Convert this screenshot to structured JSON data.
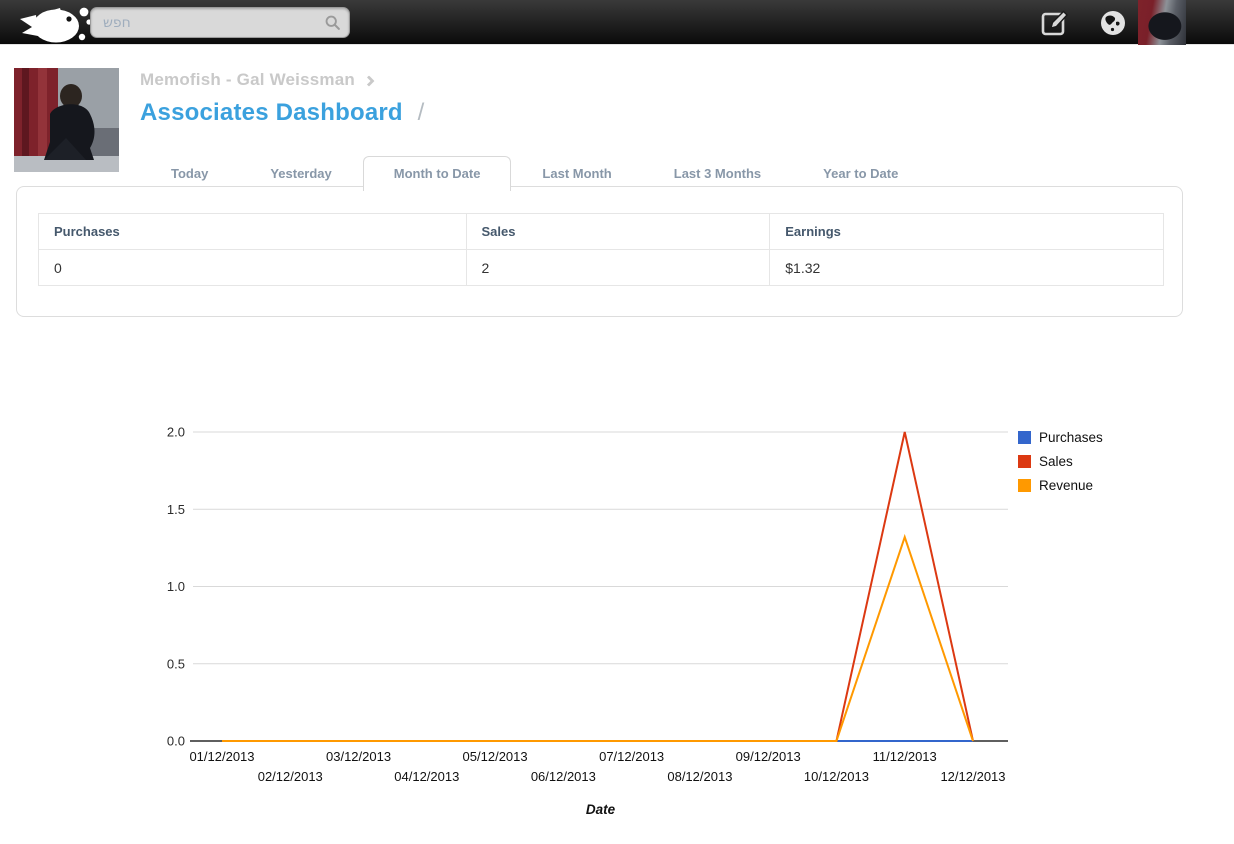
{
  "colors": {
    "accent_blue": "#3ba1de",
    "series_purchases": "#3366CC",
    "series_sales": "#DC3912",
    "series_revenue": "#FF9900"
  },
  "topbar": {
    "search_placeholder": "חפש",
    "icons": [
      "fish-logo-icon",
      "search-icon",
      "compose-icon",
      "globe-icon",
      "avatar"
    ]
  },
  "header": {
    "breadcrumb": "Memofish - Gal Weissman",
    "title": "Associates Dashboard",
    "slash": "/"
  },
  "tabs": [
    {
      "label": "Today",
      "active": false
    },
    {
      "label": "Yesterday",
      "active": false
    },
    {
      "label": "Month to Date",
      "active": true
    },
    {
      "label": "Last Month",
      "active": false
    },
    {
      "label": "Last 3 Months",
      "active": false
    },
    {
      "label": "Year to Date",
      "active": false
    }
  ],
  "summary_table": {
    "columns": [
      "Purchases",
      "Sales",
      "Earnings"
    ],
    "values": [
      "0",
      "2",
      "$1.32"
    ]
  },
  "chart_data": {
    "type": "line",
    "x": [
      "01/12/2013",
      "02/12/2013",
      "03/12/2013",
      "04/12/2013",
      "05/12/2013",
      "06/12/2013",
      "07/12/2013",
      "08/12/2013",
      "09/12/2013",
      "10/12/2013",
      "11/12/2013",
      "12/12/2013"
    ],
    "series": [
      {
        "name": "Purchases",
        "color": "#3366CC",
        "values": [
          0,
          0,
          0,
          0,
          0,
          0,
          0,
          0,
          0,
          0,
          0,
          0
        ]
      },
      {
        "name": "Sales",
        "color": "#DC3912",
        "values": [
          0,
          0,
          0,
          0,
          0,
          0,
          0,
          0,
          0,
          0,
          2,
          0
        ]
      },
      {
        "name": "Revenue",
        "color": "#FF9900",
        "values": [
          0,
          0,
          0,
          0,
          0,
          0,
          0,
          0,
          0,
          0,
          1.32,
          0
        ]
      }
    ],
    "xlabel": "Date",
    "ylim": [
      0,
      2
    ],
    "yticks": [
      0,
      0.5,
      1,
      1.5,
      2
    ],
    "ytick_labels": [
      "0.0",
      "0.5",
      "1.0",
      "1.5",
      "2.0"
    ],
    "grid": true,
    "legend_position": "right"
  }
}
